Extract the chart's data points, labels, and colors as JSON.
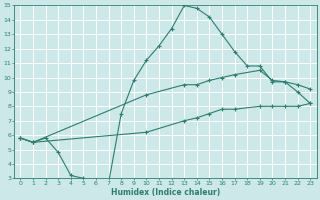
{
  "xlabel": "Humidex (Indice chaleur)",
  "xlim": [
    -0.5,
    23.5
  ],
  "ylim": [
    3,
    15
  ],
  "xticks": [
    0,
    1,
    2,
    3,
    4,
    5,
    6,
    7,
    8,
    9,
    10,
    11,
    12,
    13,
    14,
    15,
    16,
    17,
    18,
    19,
    20,
    21,
    22,
    23
  ],
  "yticks": [
    3,
    4,
    5,
    6,
    7,
    8,
    9,
    10,
    11,
    12,
    13,
    14,
    15
  ],
  "bg_color": "#cce8e8",
  "grid_color": "#ffffff",
  "line_color": "#2e7d6e",
  "line1_x": [
    0,
    1,
    2,
    3,
    4,
    5,
    6,
    7,
    8,
    9,
    10,
    11,
    12,
    13,
    14,
    15,
    16,
    17,
    18,
    19,
    20,
    21,
    22,
    23
  ],
  "line1_y": [
    5.8,
    5.5,
    5.8,
    4.8,
    3.2,
    3.0,
    2.9,
    2.7,
    7.5,
    9.8,
    11.2,
    12.2,
    13.4,
    15.0,
    14.8,
    14.2,
    13.0,
    11.8,
    10.8,
    10.8,
    9.7,
    9.7,
    9.0,
    8.2
  ],
  "line2_x": [
    0,
    1,
    10,
    13,
    14,
    15,
    16,
    17,
    19,
    20,
    21,
    22,
    23
  ],
  "line2_y": [
    5.8,
    5.5,
    8.8,
    9.5,
    9.5,
    9.8,
    10.0,
    10.2,
    10.5,
    9.8,
    9.7,
    9.5,
    9.2
  ],
  "line3_x": [
    0,
    1,
    10,
    13,
    14,
    15,
    16,
    17,
    19,
    20,
    21,
    22,
    23
  ],
  "line3_y": [
    5.8,
    5.5,
    6.2,
    7.0,
    7.2,
    7.5,
    7.8,
    7.8,
    8.0,
    8.0,
    8.0,
    8.0,
    8.2
  ]
}
